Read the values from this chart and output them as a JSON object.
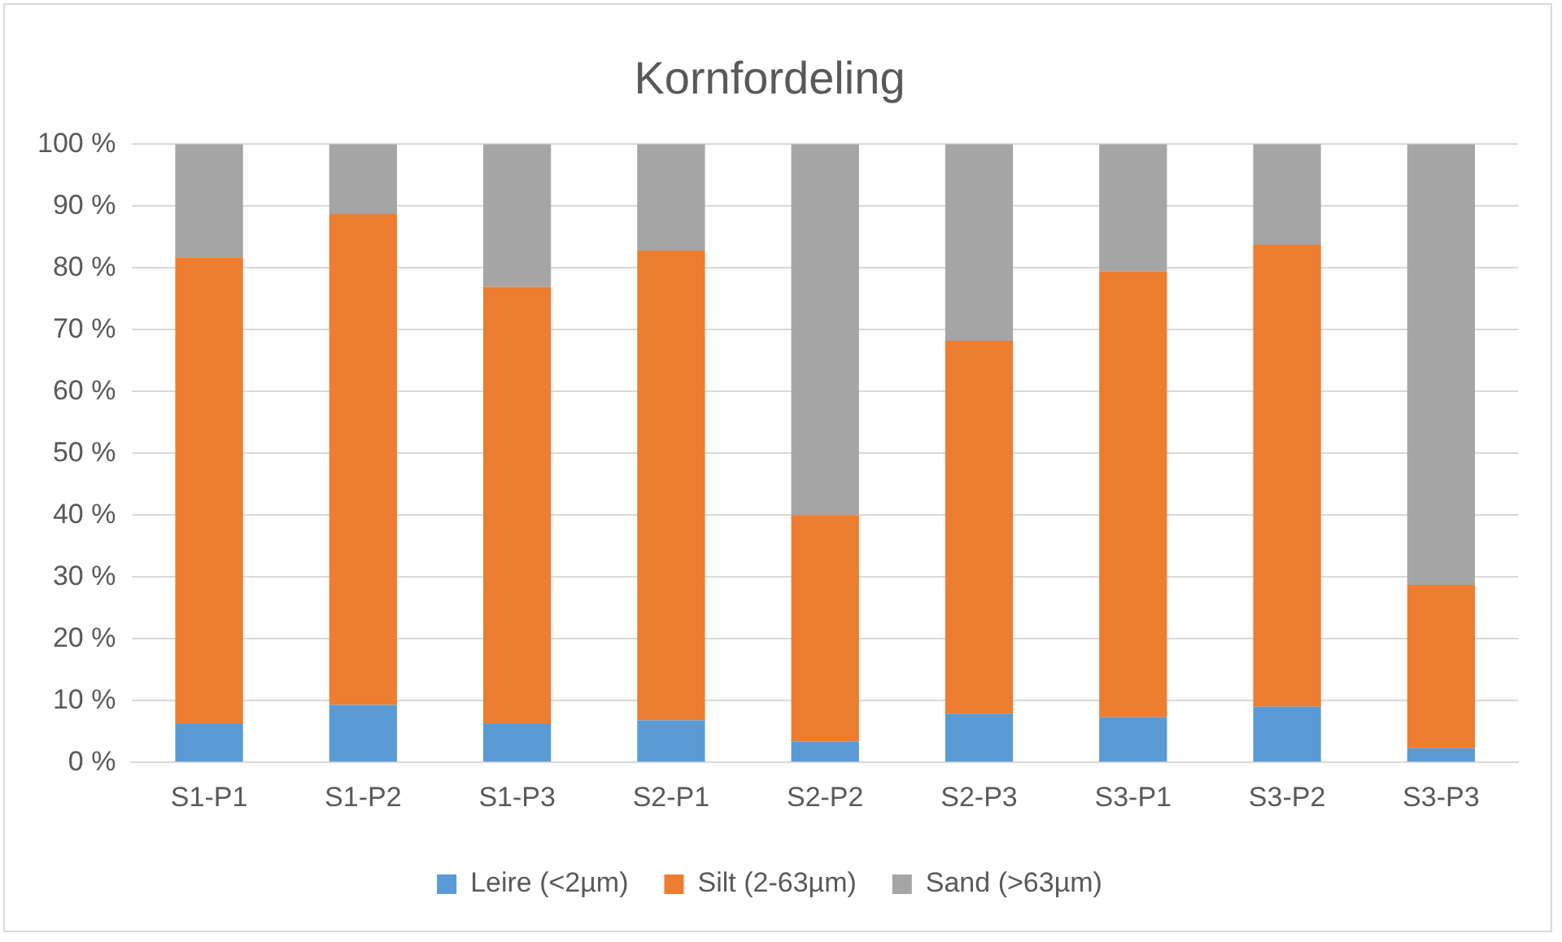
{
  "chart_data": {
    "type": "bar",
    "title": "Kornfordeling",
    "stacked": true,
    "categories": [
      "S1-P1",
      "S1-P2",
      "S1-P3",
      "S2-P1",
      "S2-P2",
      "S2-P3",
      "S3-P1",
      "S3-P2",
      "S3-P3"
    ],
    "series": [
      {
        "name": "Leire (<2µm)",
        "color": "#5b9bd5",
        "values": [
          6.2,
          9.3,
          6.2,
          6.8,
          3.4,
          7.9,
          7.3,
          9.0,
          2.3
        ]
      },
      {
        "name": "Silt (2-63µm)",
        "color": "#ed7d31",
        "values": [
          75.5,
          79.4,
          70.7,
          76.0,
          36.6,
          60.3,
          72.1,
          74.7,
          26.4
        ]
      },
      {
        "name": "Sand (>63µm)",
        "color": "#a5a5a5",
        "values": [
          18.3,
          11.3,
          23.1,
          17.2,
          60.0,
          31.8,
          20.6,
          16.3,
          71.3
        ]
      }
    ],
    "ylim": [
      0,
      100
    ],
    "yticks": [
      {
        "value": 0,
        "label": "0 %"
      },
      {
        "value": 10,
        "label": "10 %"
      },
      {
        "value": 20,
        "label": "20 %"
      },
      {
        "value": 30,
        "label": "30 %"
      },
      {
        "value": 40,
        "label": "40 %"
      },
      {
        "value": 50,
        "label": "50 %"
      },
      {
        "value": 60,
        "label": "60 %"
      },
      {
        "value": 70,
        "label": "70 %"
      },
      {
        "value": 80,
        "label": "80 %"
      },
      {
        "value": 90,
        "label": "90 %"
      },
      {
        "value": 100,
        "label": "100 %"
      }
    ],
    "grid": "y",
    "legend": "bottom"
  }
}
